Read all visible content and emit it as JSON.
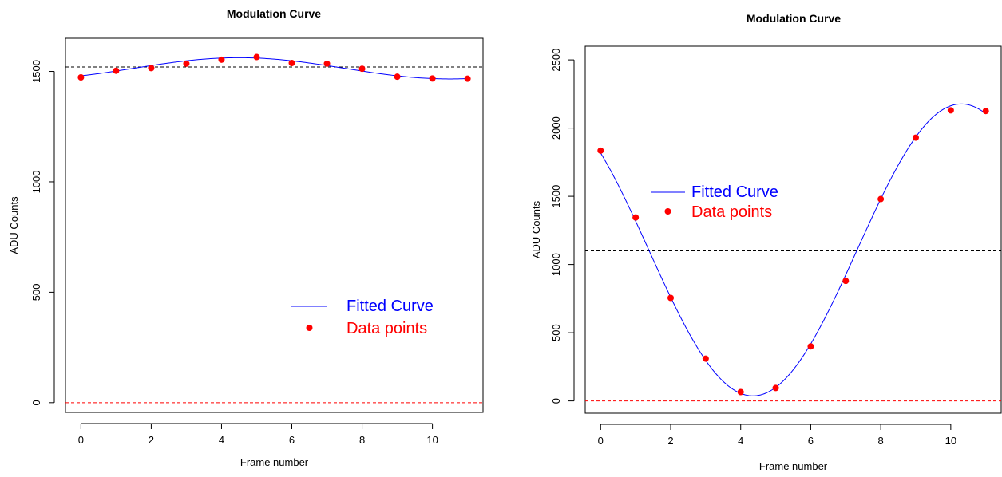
{
  "chart_data": [
    {
      "type": "line",
      "title": "Modulation Curve",
      "xlabel": "Frame number",
      "ylabel": "ADU Counts",
      "xlim": [
        -0.44,
        11.44
      ],
      "ylim": [
        -44,
        1650
      ],
      "xticks": [
        0,
        2,
        4,
        6,
        8,
        10
      ],
      "yticks": [
        0,
        500,
        1000,
        1500
      ],
      "legend": {
        "position": "bottom-right",
        "entries": [
          "Fitted Curve",
          "Data points"
        ]
      },
      "reference_lines": [
        {
          "y": 1520,
          "color": "#000000",
          "style": "dashed"
        },
        {
          "y": 0,
          "color": "#ff0000",
          "style": "dashed"
        }
      ],
      "fit": {
        "offset": 1514,
        "amplitude": 48,
        "period": 12,
        "peak_x": 4.5
      },
      "series": [
        {
          "name": "Data points",
          "color": "#ff0000",
          "x": [
            0,
            1,
            2,
            3,
            4,
            5,
            6,
            7,
            8,
            9,
            10,
            11
          ],
          "y": [
            1473,
            1503,
            1515,
            1535,
            1553,
            1565,
            1538,
            1535,
            1512,
            1476,
            1468,
            1467
          ]
        }
      ]
    },
    {
      "type": "line",
      "title": "Modulation Curve",
      "xlabel": "Frame number",
      "ylabel": "ADU Counts",
      "xlim": [
        -0.44,
        11.44
      ],
      "ylim": [
        -90,
        2600
      ],
      "xticks": [
        0,
        2,
        4,
        6,
        8,
        10
      ],
      "yticks": [
        0,
        500,
        1000,
        1500,
        2000,
        2500
      ],
      "legend": {
        "position": "top-left",
        "entries": [
          "Fitted Curve",
          "Data points"
        ]
      },
      "reference_lines": [
        {
          "y": 1100,
          "color": "#000000",
          "style": "dashed"
        },
        {
          "y": 0,
          "color": "#ff0000",
          "style": "dashed"
        }
      ],
      "fit": {
        "offset": 1107,
        "amplitude": 1070,
        "period": 11.9,
        "peak_x": 10.3
      },
      "series": [
        {
          "name": "Data points",
          "color": "#ff0000",
          "x": [
            0,
            1,
            2,
            3,
            4,
            5,
            6,
            7,
            8,
            9,
            10,
            11
          ],
          "y": [
            1835,
            1345,
            755,
            310,
            65,
            95,
            400,
            880,
            1480,
            1930,
            2130,
            2125
          ]
        }
      ]
    }
  ]
}
